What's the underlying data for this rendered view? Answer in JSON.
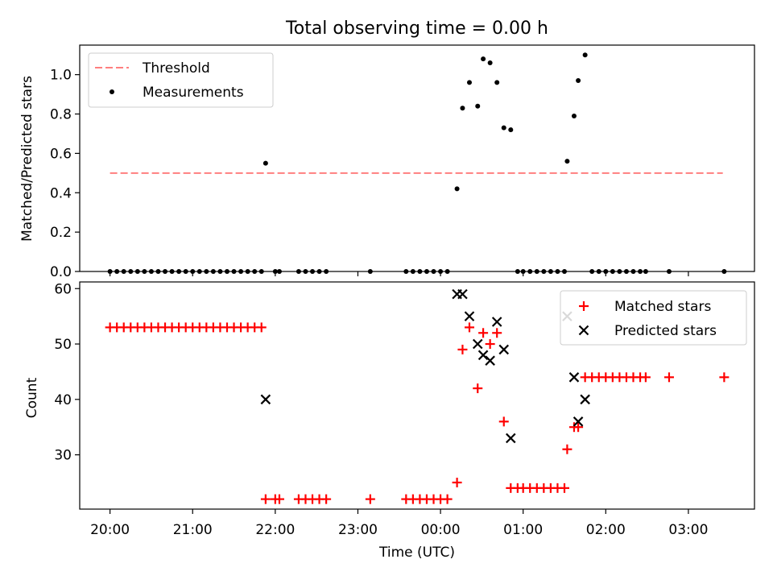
{
  "figure": {
    "title": "Total observing time = 0.00 h"
  },
  "chart_data": [
    {
      "type": "scatter",
      "title": "Total observing time = 0.00 h",
      "xlabel": "",
      "ylabel": "Matched/Predicted stars",
      "xlim": [
        "19:38",
        "03:48"
      ],
      "ylim": [
        0,
        1.15
      ],
      "yticks": [
        0.0,
        0.2,
        0.4,
        0.6,
        0.8,
        1.0
      ],
      "ytick_labels": [
        "0.0",
        "0.2",
        "0.4",
        "0.6",
        "0.8",
        "1.0"
      ],
      "legend_position": "top-left",
      "series": [
        {
          "name": "Threshold",
          "kind": "line",
          "style": "dashed",
          "color": "#ff7f7f",
          "x": [
            "20:00",
            "03:25"
          ],
          "y": [
            0.5,
            0.5
          ]
        },
        {
          "name": "Measurements",
          "kind": "points",
          "marker": "dot",
          "color": "#000000",
          "x": [
            "20:00",
            "20:05",
            "20:10",
            "20:15",
            "20:20",
            "20:25",
            "20:30",
            "20:35",
            "20:40",
            "20:45",
            "20:50",
            "20:55",
            "21:00",
            "21:05",
            "21:10",
            "21:15",
            "21:20",
            "21:25",
            "21:30",
            "21:35",
            "21:40",
            "21:45",
            "21:50",
            "21:53",
            "22:00",
            "22:03",
            "22:17",
            "22:22",
            "22:27",
            "22:32",
            "22:37",
            "23:09",
            "23:35",
            "23:40",
            "23:45",
            "23:50",
            "23:55",
            "00:00",
            "00:05",
            "00:12",
            "00:16",
            "00:21",
            "00:27",
            "00:31",
            "00:36",
            "00:41",
            "00:46",
            "00:51",
            "00:56",
            "01:00",
            "01:05",
            "01:10",
            "01:15",
            "01:20",
            "01:25",
            "01:30",
            "01:32",
            "01:37",
            "01:40",
            "01:45",
            "01:50",
            "01:55",
            "02:00",
            "02:05",
            "02:10",
            "02:15",
            "02:20",
            "02:25",
            "02:29",
            "02:46",
            "03:26"
          ],
          "y": [
            0,
            0,
            0,
            0,
            0,
            0,
            0,
            0,
            0,
            0,
            0,
            0,
            0,
            0,
            0,
            0,
            0,
            0,
            0,
            0,
            0,
            0,
            0,
            0.55,
            0,
            0,
            0,
            0,
            0,
            0,
            0,
            0,
            0,
            0,
            0,
            0,
            0,
            0,
            0,
            0.42,
            0.83,
            0.96,
            0.84,
            1.08,
            1.06,
            0.96,
            0.73,
            0.72,
            0,
            0,
            0,
            0,
            0,
            0,
            0,
            0,
            0.56,
            0.79,
            0.97,
            1.1,
            0,
            0,
            0,
            0,
            0,
            0,
            0,
            0,
            0,
            0,
            0
          ]
        }
      ]
    },
    {
      "type": "scatter",
      "title": "",
      "xlabel": "Time (UTC)",
      "ylabel": "Count",
      "xlim": [
        "19:38",
        "03:48"
      ],
      "ylim": [
        20.2,
        61.2
      ],
      "yticks": [
        30,
        40,
        50,
        60
      ],
      "ytick_labels": [
        "30",
        "40",
        "50",
        "60"
      ],
      "xticks": [
        "20:00",
        "21:00",
        "22:00",
        "23:00",
        "00:00",
        "01:00",
        "02:00",
        "03:00"
      ],
      "xtick_labels": [
        "20:00",
        "21:00",
        "22:00",
        "23:00",
        "00:00",
        "01:00",
        "02:00",
        "03:00"
      ],
      "legend_position": "top-right",
      "series": [
        {
          "name": "Matched stars",
          "kind": "points",
          "marker": "plus",
          "color": "#ff0000",
          "x": [
            "20:00",
            "20:05",
            "20:10",
            "20:15",
            "20:20",
            "20:25",
            "20:30",
            "20:35",
            "20:40",
            "20:45",
            "20:50",
            "20:55",
            "21:00",
            "21:05",
            "21:10",
            "21:15",
            "21:20",
            "21:25",
            "21:30",
            "21:35",
            "21:40",
            "21:45",
            "21:50",
            "21:53",
            "22:00",
            "22:03",
            "22:17",
            "22:22",
            "22:27",
            "22:32",
            "22:37",
            "23:09",
            "23:35",
            "23:40",
            "23:45",
            "23:50",
            "23:55",
            "00:00",
            "00:05",
            "00:12",
            "00:16",
            "00:21",
            "00:27",
            "00:31",
            "00:36",
            "00:41",
            "00:46",
            "00:51",
            "00:56",
            "01:00",
            "01:05",
            "01:10",
            "01:15",
            "01:20",
            "01:25",
            "01:30",
            "01:32",
            "01:37",
            "01:40",
            "01:45",
            "01:50",
            "01:55",
            "02:00",
            "02:05",
            "02:10",
            "02:15",
            "02:20",
            "02:25",
            "02:29",
            "02:46",
            "03:26"
          ],
          "y": [
            53,
            53,
            53,
            53,
            53,
            53,
            53,
            53,
            53,
            53,
            53,
            53,
            53,
            53,
            53,
            53,
            53,
            53,
            53,
            53,
            53,
            53,
            53,
            22,
            22,
            22,
            22,
            22,
            22,
            22,
            22,
            22,
            22,
            22,
            22,
            22,
            22,
            22,
            22,
            25,
            49,
            53,
            42,
            52,
            50,
            52,
            36,
            24,
            24,
            24,
            24,
            24,
            24,
            24,
            24,
            24,
            31,
            35,
            35,
            44,
            44,
            44,
            44,
            44,
            44,
            44,
            44,
            44,
            44,
            44,
            44
          ]
        },
        {
          "name": "Predicted stars",
          "kind": "points",
          "marker": "x",
          "color": "#000000",
          "x": [
            "21:53",
            "00:12",
            "00:16",
            "00:21",
            "00:27",
            "00:31",
            "00:36",
            "00:41",
            "00:46",
            "00:51",
            "01:32",
            "01:37",
            "01:40",
            "01:45"
          ],
          "y": [
            40,
            59,
            59,
            55,
            50,
            48,
            47,
            54,
            49,
            33,
            55,
            44,
            36,
            40
          ]
        }
      ]
    }
  ]
}
